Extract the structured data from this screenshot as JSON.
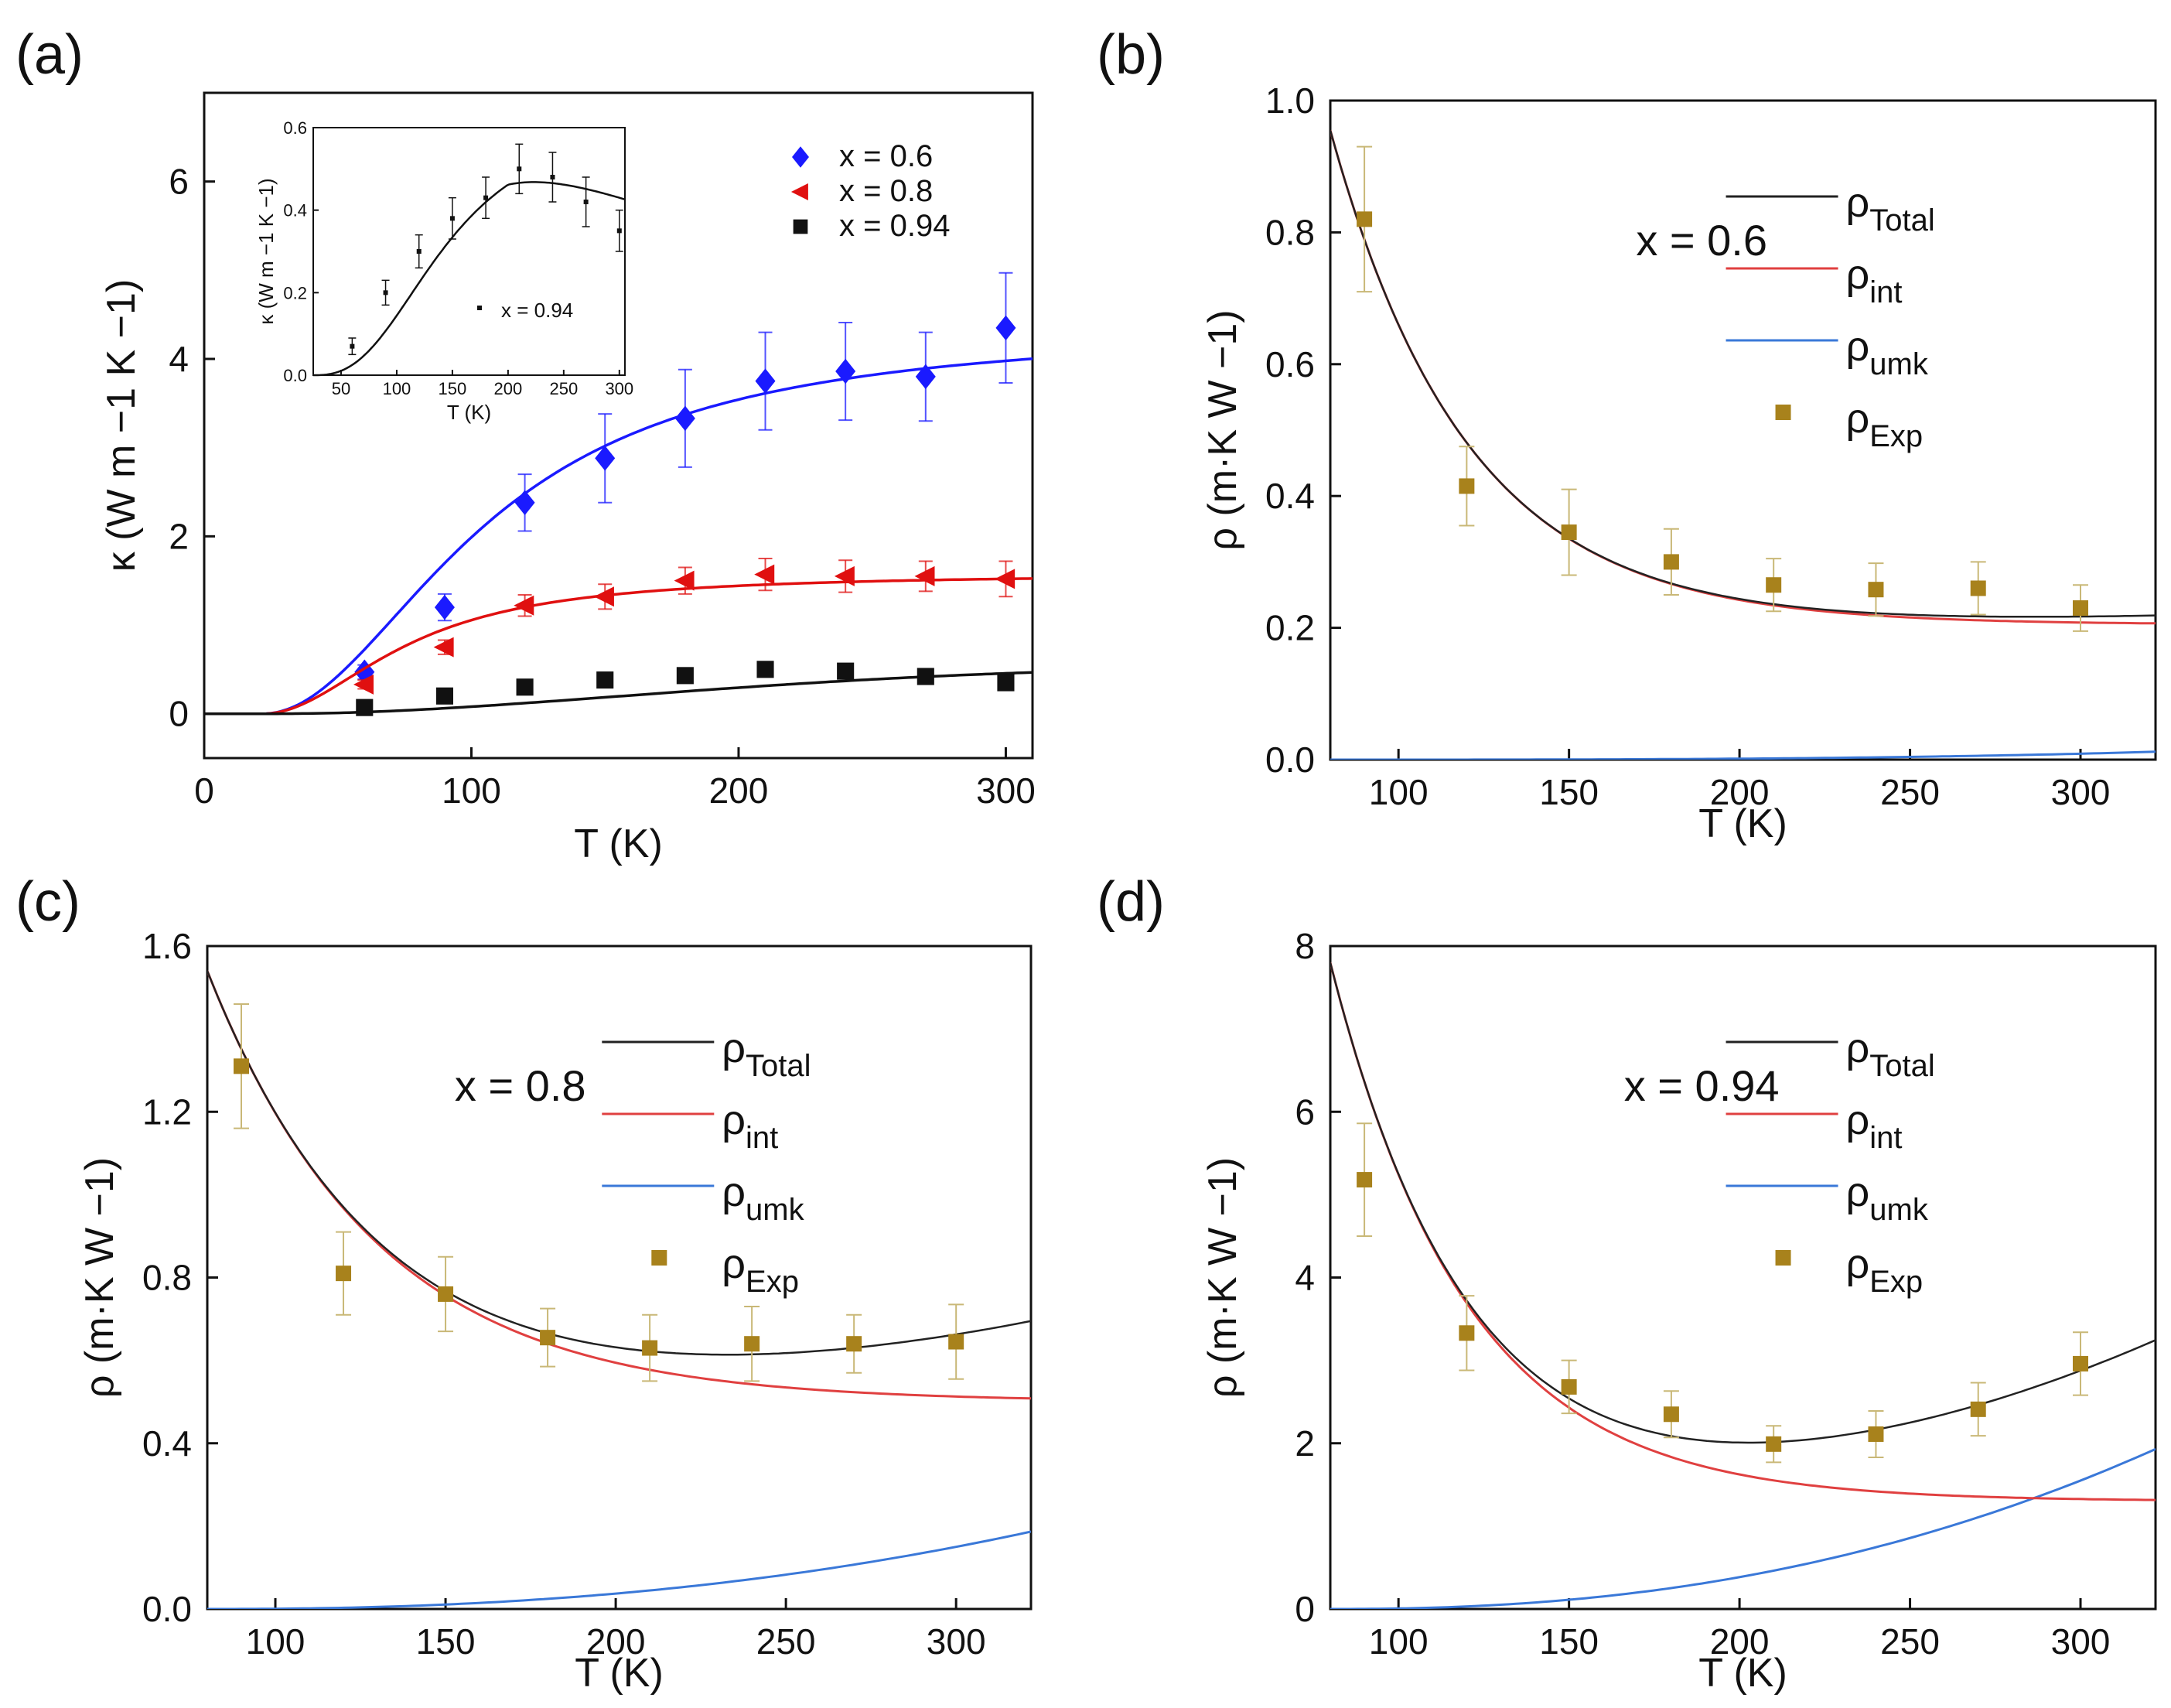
{
  "figure": {
    "panels": [
      "(a)",
      "(b)",
      "(c)",
      "(d)"
    ]
  },
  "chart_data": [
    {
      "id": "a",
      "label": "(a)",
      "type": "scatter",
      "xlabel": "T (K)",
      "ylabel": "κ (W m −1 K −1)",
      "xlim": [
        0,
        310
      ],
      "ylim": [
        -0.5,
        7.0
      ],
      "xticks": [
        0,
        100,
        200,
        300
      ],
      "yticks": [
        0,
        2,
        4,
        6
      ],
      "legend_position": "top-right",
      "series": [
        {
          "name": "x = 0.6",
          "color": "#1a1aff",
          "marker": "diamond",
          "x": [
            60,
            90,
            120,
            150,
            180,
            210,
            240,
            270,
            300
          ],
          "y": [
            0.47,
            1.2,
            2.38,
            2.88,
            3.33,
            3.75,
            3.86,
            3.8,
            4.35
          ],
          "err": [
            0.08,
            0.15,
            0.32,
            0.5,
            0.55,
            0.55,
            0.55,
            0.5,
            0.62
          ],
          "fit": {
            "amp": 4.35,
            "t0": 22,
            "w": 85,
            "p": 2.0
          }
        },
        {
          "name": "x = 0.8",
          "color": "#e01010",
          "marker": "triangle-left",
          "x": [
            60,
            90,
            120,
            150,
            180,
            210,
            240,
            270,
            300
          ],
          "y": [
            0.33,
            0.75,
            1.22,
            1.32,
            1.5,
            1.57,
            1.55,
            1.55,
            1.52
          ],
          "err": [
            0.05,
            0.08,
            0.12,
            0.14,
            0.15,
            0.18,
            0.18,
            0.17,
            0.2
          ],
          "fit": {
            "amp": 1.58,
            "t0": 22,
            "w": 55,
            "p": 2.0
          }
        },
        {
          "name": "x = 0.94",
          "color": "#111111",
          "marker": "square",
          "x": [
            60,
            90,
            120,
            150,
            180,
            210,
            240,
            270,
            300
          ],
          "y": [
            0.07,
            0.2,
            0.3,
            0.38,
            0.43,
            0.5,
            0.48,
            0.42,
            0.35
          ],
          "err": [
            0.02,
            0.03,
            0.04,
            0.05,
            0.05,
            0.06,
            0.06,
            0.06,
            0.05
          ],
          "fit": {
            "type": "bump",
            "amp": 0.466,
            "t0": 25,
            "s": 2.2,
            "rate": 0.0046
          }
        }
      ],
      "inset": {
        "xlabel": "T (K)",
        "ylabel": "κ (W m −1 K −1)",
        "xlim": [
          25,
          305
        ],
        "ylim": [
          0,
          0.6
        ],
        "xticks": [
          50,
          100,
          150,
          200,
          250,
          300
        ],
        "yticks": [
          0.0,
          0.2,
          0.4,
          0.6
        ],
        "ytick_labels": [
          "0.0",
          "0.2",
          "0.4",
          "0.6"
        ],
        "legend": "x = 0.94",
        "series": {
          "x": [
            60,
            90,
            120,
            150,
            180,
            210,
            240,
            270,
            300
          ],
          "y": [
            0.07,
            0.2,
            0.3,
            0.38,
            0.43,
            0.5,
            0.48,
            0.42,
            0.35
          ],
          "err": [
            0.02,
            0.03,
            0.04,
            0.05,
            0.05,
            0.06,
            0.06,
            0.06,
            0.05
          ]
        }
      }
    },
    {
      "id": "b",
      "label": "(b)",
      "type": "line",
      "xlabel": "T (K)",
      "ylabel": "ρ (m·K W −1)",
      "annotation": "x = 0.6",
      "xlim": [
        80,
        322
      ],
      "ylim": [
        0.0,
        1.0
      ],
      "xticks": [
        100,
        150,
        200,
        250,
        300
      ],
      "yticks": [
        0.0,
        0.2,
        0.4,
        0.6,
        0.8,
        1.0
      ],
      "ytick_labels": [
        "0.0",
        "0.2",
        "0.4",
        "0.6",
        "0.8",
        "1.0"
      ],
      "legend": [
        {
          "base": "ρ",
          "sub": "Total",
          "color": "#222222",
          "kind": "line"
        },
        {
          "base": "ρ",
          "sub": "int",
          "color": "#e04040",
          "kind": "line"
        },
        {
          "base": "ρ",
          "sub": "umk",
          "color": "#3a78d8",
          "kind": "line"
        },
        {
          "base": "ρ",
          "sub": "Exp",
          "color": "#a8821c",
          "kind": "marker"
        }
      ],
      "rho_int": {
        "c": 0.205,
        "a": 0.75,
        "k": 0.025,
        "x0": 80
      },
      "rho_umk": {
        "a": 0.009,
        "p": 3
      },
      "exp": {
        "x": [
          90,
          120,
          150,
          180,
          210,
          240,
          270,
          300
        ],
        "y": [
          0.82,
          0.415,
          0.345,
          0.3,
          0.265,
          0.258,
          0.26,
          0.23
        ],
        "err": [
          0.11,
          0.06,
          0.065,
          0.05,
          0.04,
          0.04,
          0.04,
          0.035
        ]
      }
    },
    {
      "id": "c",
      "label": "(c)",
      "type": "line",
      "xlabel": "T (K)",
      "ylabel": "ρ (m·K W −1)",
      "annotation": "x = 0.8",
      "xlim": [
        80,
        322
      ],
      "ylim": [
        0.0,
        1.6
      ],
      "xticks": [
        100,
        150,
        200,
        250,
        300
      ],
      "yticks": [
        0.0,
        0.4,
        0.8,
        1.2,
        1.6
      ],
      "ytick_labels": [
        "0.0",
        "0.4",
        "0.8",
        "1.2",
        "1.6"
      ],
      "legend": [
        {
          "base": "ρ",
          "sub": "Total",
          "color": "#222222",
          "kind": "line"
        },
        {
          "base": "ρ",
          "sub": "int",
          "color": "#e04040",
          "kind": "line"
        },
        {
          "base": "ρ",
          "sub": "umk",
          "color": "#3a78d8",
          "kind": "line"
        },
        {
          "base": "ρ",
          "sub": "Exp",
          "color": "#a8821c",
          "kind": "marker"
        }
      ],
      "rho_int": {
        "c": 0.5,
        "a": 1.04,
        "k": 0.02,
        "x0": 80
      },
      "rho_umk": {
        "a": 0.15,
        "p": 2.3
      },
      "exp": {
        "x": [
          90,
          120,
          150,
          180,
          210,
          240,
          270,
          300
        ],
        "y": [
          1.31,
          0.81,
          0.76,
          0.655,
          0.63,
          0.64,
          0.64,
          0.645
        ],
        "err": [
          0.15,
          0.1,
          0.09,
          0.07,
          0.08,
          0.09,
          0.07,
          0.09
        ]
      }
    },
    {
      "id": "d",
      "label": "(d)",
      "type": "line",
      "xlabel": "T (K)",
      "ylabel": "ρ (m·K W −1)",
      "annotation": "x = 0.94",
      "xlim": [
        80,
        322
      ],
      "ylim": [
        0,
        8
      ],
      "xticks": [
        100,
        150,
        200,
        250,
        300
      ],
      "yticks": [
        0,
        2,
        4,
        6,
        8
      ],
      "ytick_labels": [
        "0",
        "2",
        "4",
        "6",
        "8"
      ],
      "legend": [
        {
          "base": "ρ",
          "sub": "Total",
          "color": "#222222",
          "kind": "line"
        },
        {
          "base": "ρ",
          "sub": "int",
          "color": "#e04040",
          "kind": "line"
        },
        {
          "base": "ρ",
          "sub": "umk",
          "color": "#3a78d8",
          "kind": "line"
        },
        {
          "base": "ρ",
          "sub": "Exp",
          "color": "#a8821c",
          "kind": "marker"
        }
      ],
      "rho_int": {
        "c": 1.3,
        "a": 6.5,
        "k": 0.025,
        "x0": 80
      },
      "rho_umk": {
        "a": 1.55,
        "p": 2.3
      },
      "exp": {
        "x": [
          90,
          120,
          150,
          180,
          210,
          240,
          270,
          300
        ],
        "y": [
          5.18,
          3.33,
          2.68,
          2.35,
          1.99,
          2.11,
          2.41,
          2.96
        ],
        "err": [
          0.68,
          0.45,
          0.32,
          0.28,
          0.22,
          0.28,
          0.32,
          0.38
        ]
      }
    }
  ]
}
